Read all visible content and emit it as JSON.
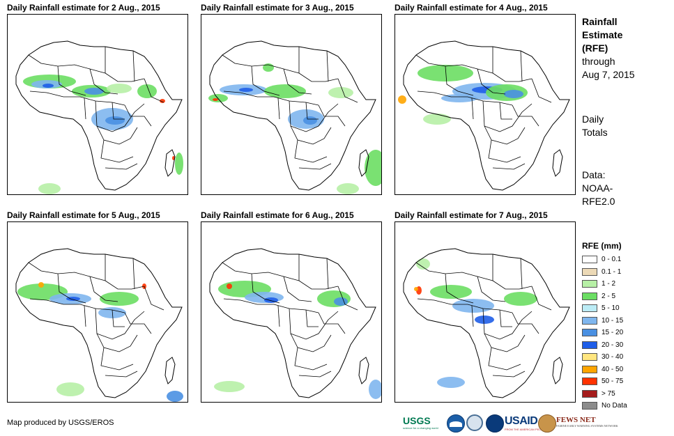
{
  "panels": [
    {
      "title": "Daily Rainfall estimate for 2 Aug., 2015"
    },
    {
      "title": "Daily Rainfall estimate for 3 Aug., 2015"
    },
    {
      "title": "Daily Rainfall estimate for 4 Aug., 2015"
    },
    {
      "title": "Daily Rainfall estimate for 5 Aug., 2015"
    },
    {
      "title": "Daily Rainfall estimate for 6 Aug., 2015"
    },
    {
      "title": "Daily Rainfall estimate for 7 Aug., 2015"
    }
  ],
  "side": {
    "heading_line1": "Rainfall",
    "heading_line2": "Estimate",
    "heading_line3": "(RFE)",
    "through_line1": "through",
    "through_line2": "Aug 7, 2015",
    "totals_line1": "Daily",
    "totals_line2": "Totals",
    "data_line1": "Data:",
    "data_line2": "NOAA-",
    "data_line3": "RFE2.0"
  },
  "legend": {
    "title": "RFE (mm)",
    "items": [
      {
        "label": "0 - 0.1",
        "color": "#ffffff"
      },
      {
        "label": "0.1 - 1",
        "color": "#ecd9b6"
      },
      {
        "label": "1 - 2",
        "color": "#b7f0a6"
      },
      {
        "label": "2 - 5",
        "color": "#6bde63"
      },
      {
        "label": "5 - 10",
        "color": "#bcecf6"
      },
      {
        "label": "10 - 15",
        "color": "#7fb6ee"
      },
      {
        "label": "15 - 20",
        "color": "#4a90e2"
      },
      {
        "label": "20 - 30",
        "color": "#1f5ee8"
      },
      {
        "label": "30 - 40",
        "color": "#ffe680"
      },
      {
        "label": "40 - 50",
        "color": "#ffa500"
      },
      {
        "label": "50 - 75",
        "color": "#ff3300"
      },
      {
        "label": "> 75",
        "color": "#a51c1c"
      },
      {
        "label": "No Data",
        "color": "#8c8c8c"
      }
    ]
  },
  "credit": "Map produced by USGS/EROS",
  "logos": {
    "usgs": "USGS",
    "usgs_tagline": "science for a changing world",
    "usaid": "USAID",
    "usaid_tagline": "FROM THE AMERICAN PEOPLE",
    "fews": "FEWS NET",
    "fews_tagline": "FAMINE EARLY WARNING SYSTEMS NETWORK"
  }
}
